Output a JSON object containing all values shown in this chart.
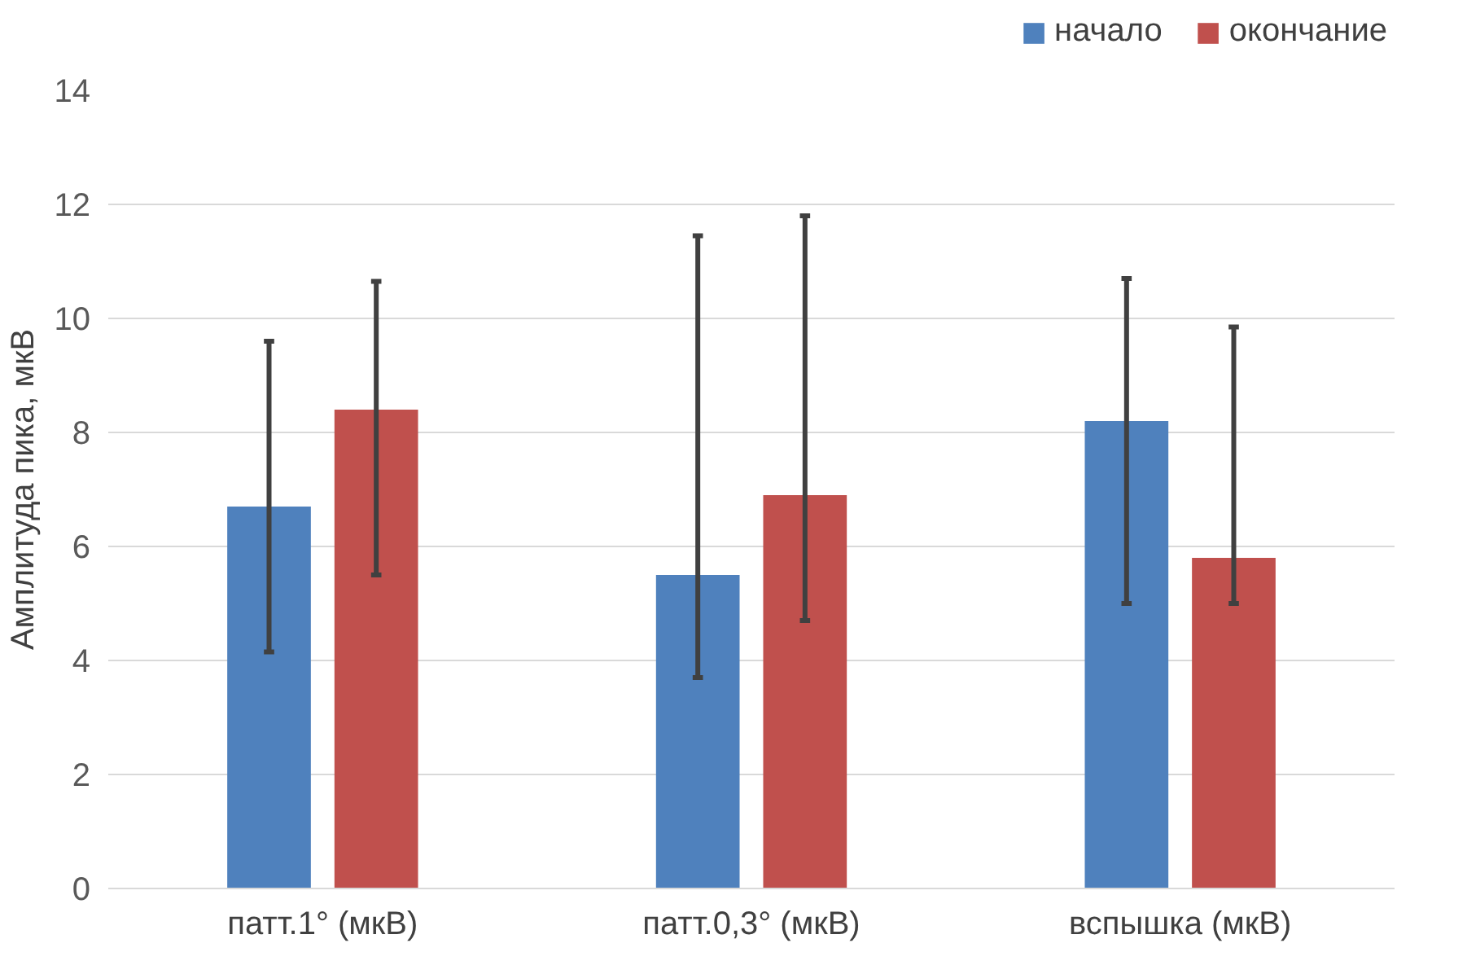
{
  "chart_data": {
    "type": "bar",
    "ylabel": "Амплитуда пика, мкВ",
    "categories": [
      "патт.1° (мкВ)",
      "патт.0,3° (мкВ)",
      "вспышка (мкВ)"
    ],
    "series": [
      {
        "name": "начало",
        "color": "#4f81bd",
        "values": [
          6.7,
          5.5,
          8.2
        ],
        "errors": [
          [
            4.15,
            9.6
          ],
          [
            3.7,
            11.45
          ],
          [
            5.0,
            10.7
          ]
        ]
      },
      {
        "name": "окончание",
        "color": "#c0504d",
        "values": [
          8.4,
          6.9,
          5.8
        ],
        "errors": [
          [
            5.5,
            10.65
          ],
          [
            4.7,
            11.8
          ],
          [
            5.0,
            9.85
          ]
        ]
      }
    ],
    "ylim": [
      0,
      14
    ],
    "yticks": [
      0,
      2,
      4,
      6,
      8,
      10,
      12,
      14
    ],
    "grid": "y",
    "legend": "top right"
  }
}
